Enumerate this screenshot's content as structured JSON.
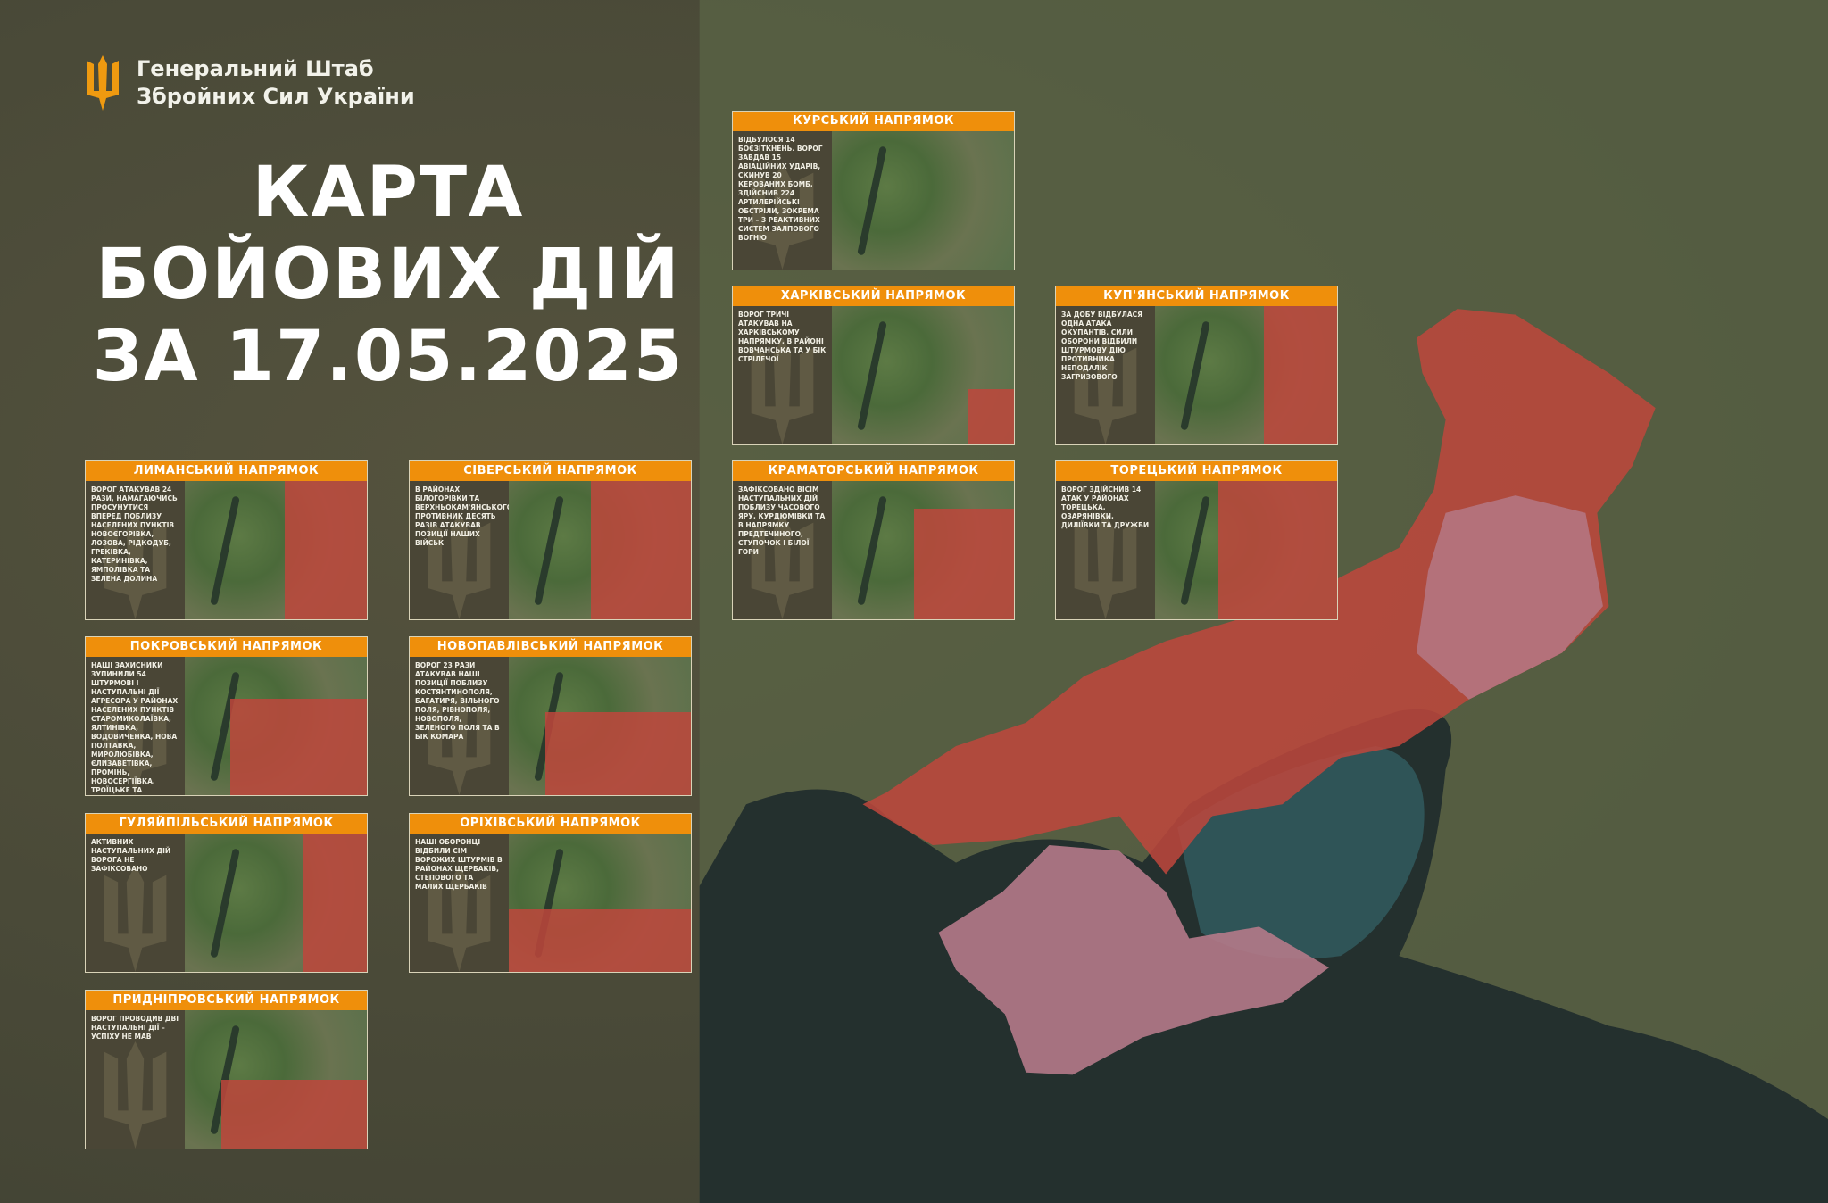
{
  "header": {
    "org_line1": "Генеральний Штаб",
    "org_line2": "Збройних Сил України",
    "logo": "trident-icon"
  },
  "title": {
    "line1": "КАРТА",
    "line2": "БОЙОВИХ ДІЙ",
    "line3": "ЗА 17.05.2025"
  },
  "colors": {
    "accent": "#ef8f0b",
    "occupied": "#c0463c",
    "occupied_pre2022": "#b57a8a",
    "background": "#4a4a38"
  },
  "panels": [
    {
      "title": "КУРСЬКИЙ НАПРЯМОК",
      "text": "Відбулося 14 боєзіткнень. Ворог завдав 15 авіаційних ударів, скинув 20 керованих бомб, здійснив 224 артилерійські обстріли, зокрема три – з реактивних систем залпового вогню"
    },
    {
      "title": "ХАРКІВСЬКИЙ НАПРЯМОК",
      "text": "Ворог тричі атакував на Харківському напрямку, в районі Вовчанська та у бік Стрілечої"
    },
    {
      "title": "КУП'ЯНСЬКИЙ НАПРЯМОК",
      "text": "За добу відбулася одна атака окупантів. Сили оборони відбили штурмову дію противника неподалік Загризового"
    },
    {
      "title": "ЛИМАНСЬКИЙ НАПРЯМОК",
      "text": "Ворог атакував 24 рази, намагаючись просунутися вперед поблизу населених пунктів Новоєгорівка, Лозова, Рідкодуб, Греківка, Катеринівка, Ямполівка та Зелена Долина"
    },
    {
      "title": "СІВЕРСЬКИЙ НАПРЯМОК",
      "text": "В районах Білогорівки та Верхньокам'янського противник десять разів атакував позиції наших військ"
    },
    {
      "title": "КРАМАТОРСЬКИЙ НАПРЯМОК",
      "text": "Зафіксовано вісім наступальних дій поблизу Часового Яру, Курдюмівки та в напрямку Предтечиного, Ступочок і Білої Гори"
    },
    {
      "title": "ТОРЕЦЬКИЙ НАПРЯМОК",
      "text": "Ворог здійснив 14 атак у районах Торецька, Озарянівки, Диліївки та Дружби"
    },
    {
      "title": "ПОКРОВСЬКИЙ НАПРЯМОК",
      "text": "Наші захисники зупинили 54 штурмові і наступальні дії агресора у районах населених пунктів Старомиколаївка, Ялтинівка, Водовиченка, Нова Полтавка, Миролюбівка, Єлизаветівка, Промінь, Новосергіївка, Троїцьке та Андріївка"
    },
    {
      "title": "НОВОПАВЛІВСЬКИЙ НАПРЯМОК",
      "text": "Ворог 23 рази атакував наші позиції поблизу Костянтинополя, Багатиря, Вільного Поля, Рівнополя, Новополя, Зеленого Поля та в бік Комара"
    },
    {
      "title": "ГУЛЯЙПІЛЬСЬКИЙ НАПРЯМОК",
      "text": "Активних наступальних дій ворога не зафіксовано"
    },
    {
      "title": "ОРІХІВСЬКИЙ НАПРЯМОК",
      "text": "Наші оборонці відбили сім ворожих штурмів в районах Щербаків, Степового та Малих Щербаків"
    },
    {
      "title": "ПРИДНІПРОВСЬКИЙ НАПРЯМОК",
      "text": "Ворог проводив дві наступальні дії – успіху не мав"
    }
  ]
}
